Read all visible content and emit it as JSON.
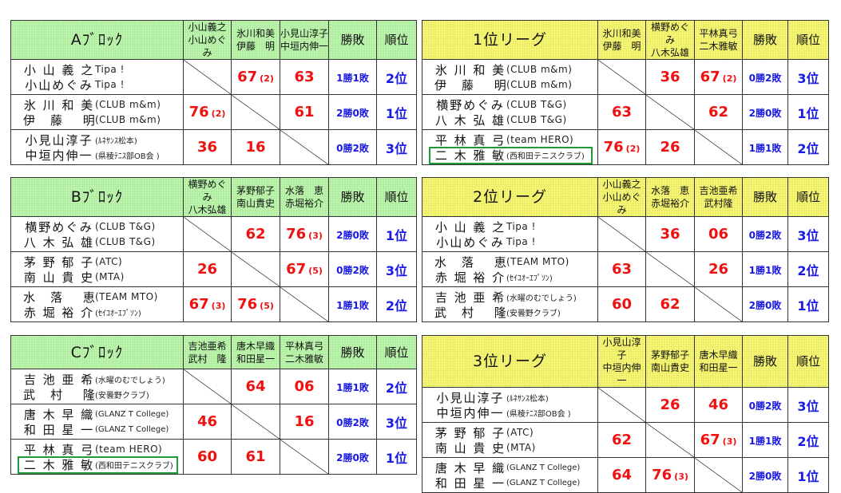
{
  "colors": {
    "group_header": "#bff5b0",
    "league_header": "#f7f77a",
    "score": "#f01010",
    "record": "#1a1ae6",
    "highlight_box": "#1f9a3a"
  },
  "record_label": "勝敗",
  "rank_label": "順位",
  "tables": [
    {
      "title": "Aﾌﾞﾛｯｸ",
      "theme": "g",
      "cols": [
        [
          "小山義之",
          "小山めぐみ"
        ],
        [
          "氷川和美",
          "伊藤　明"
        ],
        [
          "小見山淳子",
          "中垣内伸一"
        ]
      ],
      "rows": [
        {
          "names": [
            "小 山 義 之",
            "小山めぐみ"
          ],
          "clubs": [
            "Tipa !",
            "Tipa !"
          ],
          "scores": [
            null,
            {
              "s": "67",
              "t": "(2)"
            },
            {
              "s": "63",
              "t": ""
            }
          ],
          "record": "1勝1敗",
          "rank": "2位"
        },
        {
          "names": [
            "氷 川 和 美",
            "伊　藤　 明"
          ],
          "clubs": [
            "(CLUB m&m)",
            "(CLUB m&m)"
          ],
          "scores": [
            {
              "s": "76",
              "t": "(2)"
            },
            null,
            {
              "s": "61",
              "t": ""
            }
          ],
          "record": "2勝0敗",
          "rank": "1位"
        },
        {
          "names": [
            "小見山淳子",
            "中垣内伸一"
          ],
          "clubs": [
            "(ﾙﾈｻﾝｽ松本)",
            "(県稜ﾃﾆｽ部OB会 )"
          ],
          "small": true,
          "scores": [
            {
              "s": "36",
              "t": ""
            },
            {
              "s": "16",
              "t": ""
            },
            null
          ],
          "record": "0勝2敗",
          "rank": "3位"
        }
      ]
    },
    {
      "title": "1位リーグ",
      "theme": "y",
      "cols": [
        [
          "氷川和美",
          "伊藤　明"
        ],
        [
          "横野めぐみ",
          "八木弘雄"
        ],
        [
          "平林真弓",
          "二木雅敏"
        ]
      ],
      "rows": [
        {
          "names": [
            "氷 川 和 美",
            "伊　藤　 明"
          ],
          "clubs": [
            "(CLUB m&m)",
            "(CLUB m&m)"
          ],
          "scores": [
            null,
            {
              "s": "36",
              "t": ""
            },
            {
              "s": "67",
              "t": "(2)"
            }
          ],
          "record": "0勝2敗",
          "rank": "3位"
        },
        {
          "names": [
            "横野めぐみ",
            "八 木 弘 雄"
          ],
          "clubs": [
            "(CLUB T&G)",
            "(CLUB T&G)"
          ],
          "scores": [
            {
              "s": "63",
              "t": ""
            },
            null,
            {
              "s": "62",
              "t": ""
            }
          ],
          "record": "2勝0敗",
          "rank": "1位"
        },
        {
          "names": [
            "平 林 真 弓",
            "二 木 雅 敏"
          ],
          "clubs": [
            "(team HERO)",
            "(西和田テニスクラブ)"
          ],
          "small2": true,
          "highlight": true,
          "scores": [
            {
              "s": "76",
              "t": "(2)"
            },
            {
              "s": "26",
              "t": ""
            },
            null
          ],
          "record": "1勝1敗",
          "rank": "2位"
        }
      ]
    },
    {
      "title": "Bﾌﾞﾛｯｸ",
      "theme": "g",
      "cols": [
        [
          "横野めぐみ",
          "八木弘雄"
        ],
        [
          "茅野郁子",
          "南山貴史"
        ],
        [
          "水落　恵",
          "赤堀裕介"
        ]
      ],
      "rows": [
        {
          "names": [
            "横野めぐみ",
            "八 木 弘 雄"
          ],
          "clubs": [
            "(CLUB T&G)",
            "(CLUB T&G)"
          ],
          "scores": [
            null,
            {
              "s": "62",
              "t": ""
            },
            {
              "s": "76",
              "t": "(3)"
            }
          ],
          "record": "2勝0敗",
          "rank": "1位"
        },
        {
          "names": [
            "茅 野 郁 子",
            "南 山 貴 史"
          ],
          "clubs": [
            "(ATC)",
            "(MTA)"
          ],
          "scores": [
            {
              "s": "26",
              "t": ""
            },
            null,
            {
              "s": "67",
              "t": "(5)"
            }
          ],
          "record": "0勝2敗",
          "rank": "3位"
        },
        {
          "names": [
            "水　落　 恵",
            "赤 堀 裕 介"
          ],
          "clubs": [
            "(TEAM MTO)",
            "(ｾｲｺｵｰｴﾌﾟｿﾝ)"
          ],
          "small2": true,
          "scores": [
            {
              "s": "67",
              "t": "(3)"
            },
            {
              "s": "76",
              "t": "(5)"
            },
            null
          ],
          "record": "1勝1敗",
          "rank": "2位"
        }
      ]
    },
    {
      "title": "2位リーグ",
      "theme": "y",
      "cols": [
        [
          "小山義之",
          "小山めぐみ"
        ],
        [
          "水落　恵",
          "赤堀裕介"
        ],
        [
          "吉池亜希",
          "武村隆"
        ]
      ],
      "rows": [
        {
          "names": [
            "小 山 義 之",
            "小山めぐみ"
          ],
          "clubs": [
            "Tipa !",
            "Tipa !"
          ],
          "scores": [
            null,
            {
              "s": "36",
              "t": ""
            },
            {
              "s": "06",
              "t": ""
            }
          ],
          "record": "0勝2敗",
          "rank": "3位"
        },
        {
          "names": [
            "水　落　 恵",
            "赤 堀 裕 介"
          ],
          "clubs": [
            "(TEAM MTO)",
            "(ｾｲｺｵｰｴﾌﾟｿﾝ)"
          ],
          "small2": true,
          "scores": [
            {
              "s": "63",
              "t": ""
            },
            null,
            {
              "s": "26",
              "t": ""
            }
          ],
          "record": "1勝1敗",
          "rank": "2位"
        },
        {
          "names": [
            "吉 池 亜 希",
            "武　村　 隆"
          ],
          "clubs": [
            "(水曜のむでしょう)",
            "(安曇野クラブ)"
          ],
          "small": true,
          "scores": [
            {
              "s": "60",
              "t": ""
            },
            {
              "s": "62",
              "t": ""
            },
            null
          ],
          "record": "2勝0敗",
          "rank": "1位"
        }
      ]
    },
    {
      "title": "Cﾌﾞﾛｯｸ",
      "theme": "g",
      "cols": [
        [
          "吉池亜希",
          "武村　隆"
        ],
        [
          "唐木早織",
          "和田星一"
        ],
        [
          "平林真弓",
          "二木雅敏"
        ]
      ],
      "rows": [
        {
          "names": [
            "吉 池 亜 希",
            "武　村　 隆"
          ],
          "clubs": [
            "(水曜のむでしょう)",
            "(安曇野クラブ)"
          ],
          "small": true,
          "scores": [
            null,
            {
              "s": "64",
              "t": ""
            },
            {
              "s": "06",
              "t": ""
            }
          ],
          "record": "1勝1敗",
          "rank": "2位"
        },
        {
          "names": [
            "唐 木 早 織",
            "和 田 星 一"
          ],
          "clubs": [
            "(GLANZ T College)",
            "(GLANZ T College)"
          ],
          "small": true,
          "scores": [
            {
              "s": "46",
              "t": ""
            },
            null,
            {
              "s": "16",
              "t": ""
            }
          ],
          "record": "0勝2敗",
          "rank": "3位"
        },
        {
          "names": [
            "平 林 真 弓",
            "二 木 雅 敏"
          ],
          "clubs": [
            "(team HERO)",
            "(西和田テニスクラブ)"
          ],
          "small2": true,
          "highlight": true,
          "scores": [
            {
              "s": "60",
              "t": ""
            },
            {
              "s": "61",
              "t": ""
            },
            null
          ],
          "record": "2勝0敗",
          "rank": "1位"
        }
      ]
    },
    {
      "title": "3位リーグ",
      "theme": "y",
      "cols": [
        [
          "小見山淳子",
          "中垣内伸一"
        ],
        [
          "茅野郁子",
          "南山貴史"
        ],
        [
          "唐木早織",
          "和田星一"
        ]
      ],
      "rows": [
        {
          "names": [
            "小見山淳子",
            "中垣内伸一"
          ],
          "clubs": [
            "(ﾙﾈｻﾝｽ松本)",
            "(県稜ﾃﾆｽ部OB会 )"
          ],
          "small": true,
          "scores": [
            null,
            {
              "s": "26",
              "t": ""
            },
            {
              "s": "46",
              "t": ""
            }
          ],
          "record": "0勝2敗",
          "rank": "3位"
        },
        {
          "names": [
            "茅 野 郁 子",
            "南 山 貴 史"
          ],
          "clubs": [
            "(ATC)",
            "(MTA)"
          ],
          "scores": [
            {
              "s": "62",
              "t": ""
            },
            null,
            {
              "s": "67",
              "t": "(3)"
            }
          ],
          "record": "1勝1敗",
          "rank": "2位"
        },
        {
          "names": [
            "唐 木 早 織",
            "和 田 星 一"
          ],
          "clubs": [
            "(GLANZ T College)",
            "(GLANZ T College)"
          ],
          "small": true,
          "scores": [
            {
              "s": "64",
              "t": ""
            },
            {
              "s": "76",
              "t": "(3)"
            },
            null
          ],
          "record": "2勝0敗",
          "rank": "1位"
        }
      ]
    }
  ]
}
